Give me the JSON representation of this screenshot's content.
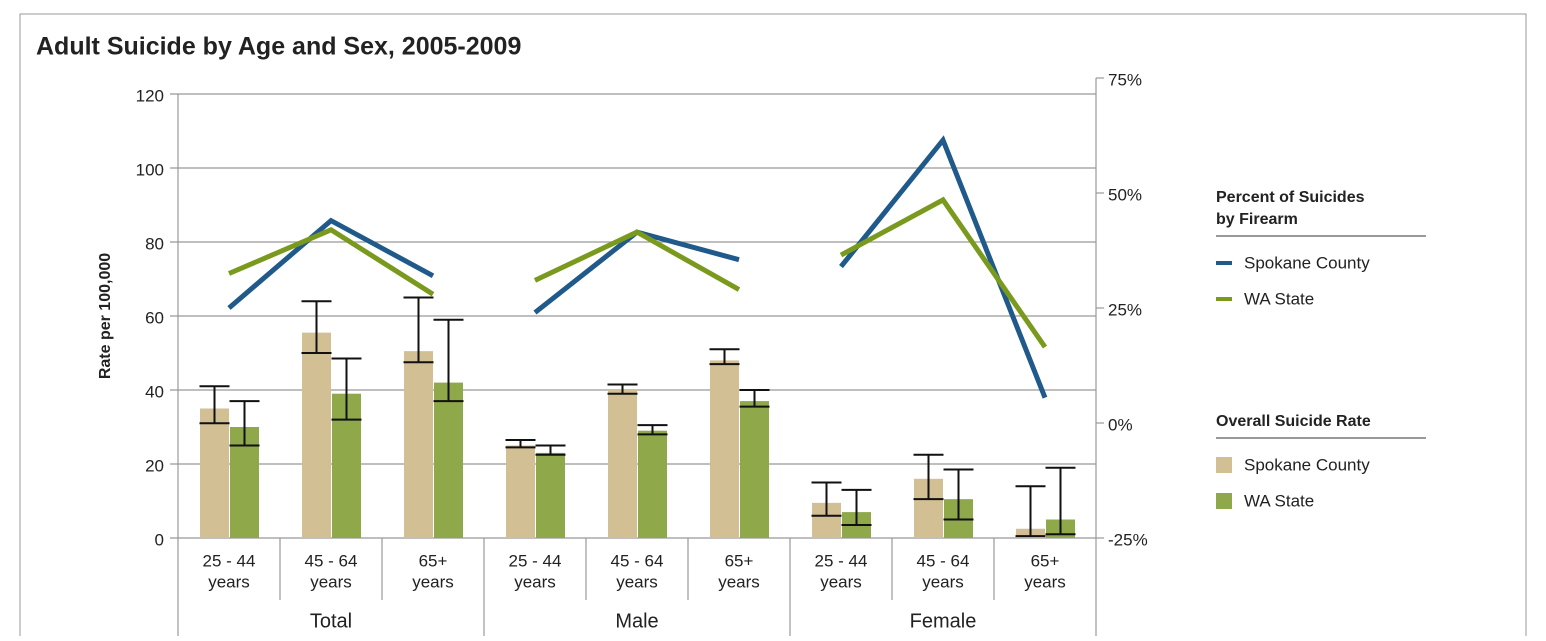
{
  "chart_data": {
    "type": "bar",
    "title": "Adult Suicide by Age and Sex, 2005-2009",
    "y_label": "Rate per 100,000",
    "groups": [
      "Total",
      "Male",
      "Female"
    ],
    "categories": [
      [
        "25 - 44",
        "years"
      ],
      [
        "45 - 64",
        "years"
      ],
      [
        "65+",
        "years"
      ],
      [
        "25 - 44",
        "years"
      ],
      [
        "45 - 64",
        "years"
      ],
      [
        "65+",
        "years"
      ],
      [
        "25 - 44",
        "years"
      ],
      [
        "45 - 64",
        "years"
      ],
      [
        "65+",
        "years"
      ]
    ],
    "ylim": [
      0,
      120
    ],
    "yticks": [
      0,
      20,
      40,
      60,
      80,
      100,
      120
    ],
    "y2lim": [
      -25,
      75
    ],
    "y2ticks": [
      {
        "value": -25,
        "label": "-25%"
      },
      {
        "value": 0,
        "label": "0%"
      },
      {
        "value": 25,
        "label": "25%"
      },
      {
        "value": 50,
        "label": "50%"
      },
      {
        "value": 75,
        "label": "75%"
      }
    ],
    "grid": true,
    "legend_titles": [
      [
        "Percent of Suicides",
        "by Firearm"
      ],
      [
        "Overall Suicide Rate"
      ]
    ],
    "series": [
      {
        "name": "Spokane County",
        "type": "line",
        "axis": "y2",
        "color": "#1f5a8a",
        "values": [
          25,
          44,
          32,
          24,
          41.5,
          35.5,
          34,
          61.5,
          5.5
        ]
      },
      {
        "name": "WA State",
        "type": "line",
        "axis": "y2",
        "color": "#7a9a1e",
        "values": [
          32.5,
          42,
          28,
          31,
          41.5,
          29,
          36.5,
          48.5,
          16.5
        ]
      },
      {
        "name": "Spokane County",
        "type": "bar",
        "color": "#d2bf94",
        "values": [
          35,
          55.5,
          50.5,
          25,
          40,
          48,
          9.5,
          16,
          2.5
        ],
        "lower": [
          31,
          50,
          47.5,
          24.5,
          39,
          47,
          6,
          10.5,
          0.5
        ],
        "upper": [
          41,
          64,
          65,
          26.5,
          41.5,
          51,
          15,
          22.5,
          14
        ]
      },
      {
        "name": "WA State",
        "type": "bar",
        "color": "#8fa84a",
        "values": [
          30,
          39,
          42,
          23,
          29,
          37,
          7,
          10.5,
          5
        ],
        "lower": [
          25,
          32,
          37,
          22.5,
          28,
          35.5,
          3.5,
          5,
          1
        ],
        "upper": [
          37,
          48.5,
          59,
          25,
          30.5,
          40,
          13,
          18.5,
          19
        ]
      }
    ]
  }
}
